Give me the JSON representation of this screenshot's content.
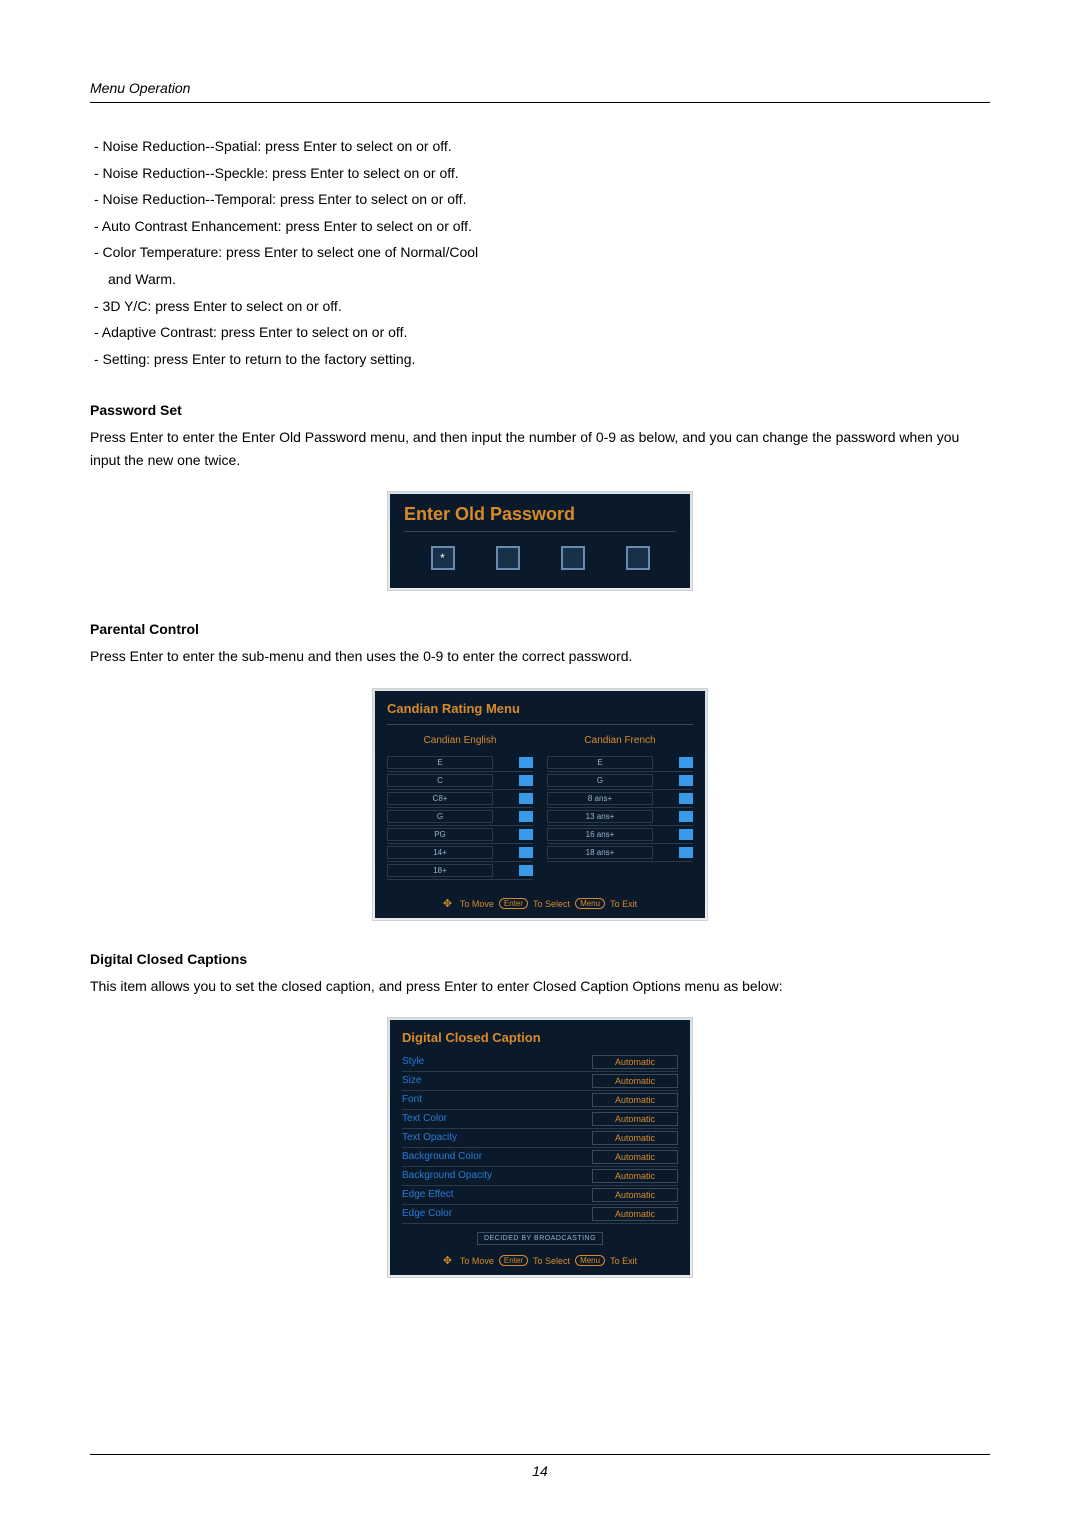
{
  "header": {
    "section": "Menu Operation"
  },
  "bullets": [
    "- Noise Reduction--Spatial: press Enter to select on or off.",
    "- Noise Reduction--Speckle: press Enter to select on or off.",
    "- Noise Reduction--Temporal: press Enter to select on or off.",
    "- Auto Contrast Enhancement: press Enter to select on or off.",
    "- Color Temperature: press Enter to select one of Normal/Cool",
    "  and Warm.",
    "- 3D Y/C: press Enter to select on or off.",
    "- Adaptive Contrast: press Enter to select on or off.",
    "- Setting: press Enter to return to the factory setting."
  ],
  "passwordSet": {
    "heading": "Password Set",
    "text": "Press Enter to enter the Enter Old Password menu, and then input the number of 0-9 as below, and you can change the password when you input the new one twice.",
    "panelTitle": "Enter Old Password",
    "entered": "*"
  },
  "parental": {
    "heading": "Parental Control",
    "text": "Press Enter to enter the sub-menu and then uses the 0-9 to enter the correct password.",
    "panelTitle": "Candian Rating Menu",
    "col1": {
      "title": "Candian English",
      "items": [
        "E",
        "C",
        "C8+",
        "G",
        "PG",
        "14+",
        "18+"
      ]
    },
    "col2": {
      "title": "Candian French",
      "items": [
        "E",
        "G",
        "8 ans+",
        "13 ans+",
        "16 ans+",
        "18 ans+"
      ]
    }
  },
  "hints": {
    "move": "To Move",
    "enter": "Enter",
    "select": "To Select",
    "menu": "Menu",
    "exit": "To Exit"
  },
  "dcc": {
    "heading": "Digital Closed Captions",
    "text": "This item allows you to set the closed caption, and press Enter to enter Closed Caption Options menu as below:",
    "panelTitle": "Digital Closed Caption",
    "rows": [
      {
        "label": "Style",
        "value": "Automatic"
      },
      {
        "label": "Size",
        "value": "Automatic"
      },
      {
        "label": "Font",
        "value": "Automatic"
      },
      {
        "label": "Text Color",
        "value": "Automatic"
      },
      {
        "label": "Text Opacity",
        "value": "Automatic"
      },
      {
        "label": "Background Color",
        "value": "Automatic"
      },
      {
        "label": "Background Opacity",
        "value": "Automatic"
      },
      {
        "label": "Edge Effect",
        "value": "Automatic"
      },
      {
        "label": "Edge Color",
        "value": "Automatic"
      }
    ],
    "note": "DECIDED BY BROADCASTING"
  },
  "footer": {
    "page": "14"
  }
}
